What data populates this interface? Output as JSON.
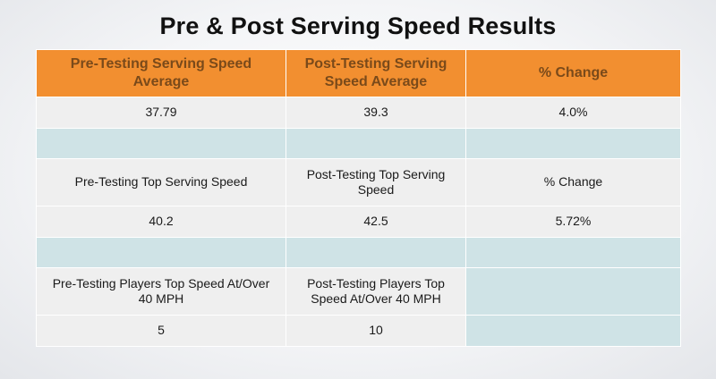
{
  "title": "Pre & Post Serving Speed Results",
  "table": {
    "header": [
      "Pre-Testing Serving Speed Average",
      "Post-Testing Serving Speed Average",
      "% Change"
    ],
    "average_values": [
      "37.79",
      "39.3",
      "4.0%"
    ],
    "top_speed_labels": [
      "Pre-Testing Top Serving Speed",
      "Post-Testing Top Serving Speed",
      "% Change"
    ],
    "top_speed_values": [
      "40.2",
      "42.5",
      "5.72%"
    ],
    "players_labels": [
      "Pre-Testing Players Top Speed At/Over 40 MPH",
      "Post-Testing Players Top Speed At/Over 40 MPH"
    ],
    "players_values": [
      "5",
      "10"
    ]
  },
  "colors": {
    "header_bg": "#f28f30",
    "header_text": "#7a4a1a",
    "row_light": "#efefef",
    "row_blue": "#cfe3e6"
  }
}
